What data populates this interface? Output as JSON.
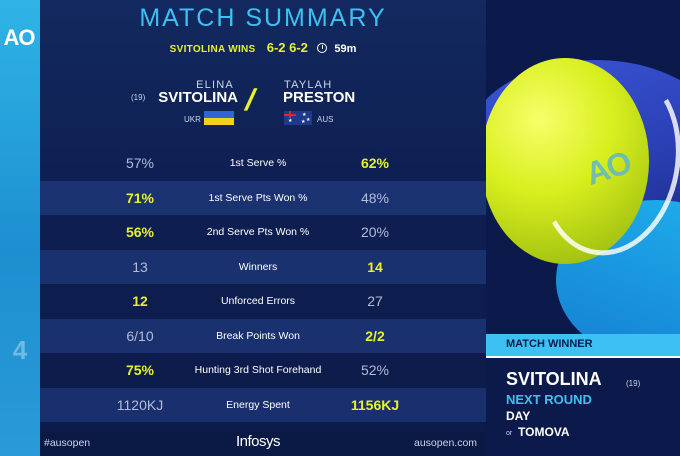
{
  "brand": {
    "logo_text": "AO",
    "side_mark": "4"
  },
  "header": {
    "title": "MATCH SUMMARY",
    "result_text": "SVITOLINA WINS",
    "scores": "6-2  6-2",
    "duration": "59m"
  },
  "players": {
    "p1": {
      "first": "ELINA",
      "last": "SVITOLINA",
      "seed": "(19)",
      "country": "UKR"
    },
    "p2": {
      "first": "TAYLAH",
      "last": "PRESTON",
      "country": "AUS"
    }
  },
  "stats": [
    {
      "left": "57%",
      "label": "1st Serve %",
      "right": "62%",
      "winner": "right"
    },
    {
      "left": "71%",
      "label": "1st Serve Pts Won %",
      "right": "48%",
      "winner": "left"
    },
    {
      "left": "56%",
      "label": "2nd Serve Pts Won %",
      "right": "20%",
      "winner": "left"
    },
    {
      "left": "13",
      "label": "Winners",
      "right": "14",
      "winner": "right"
    },
    {
      "left": "12",
      "label": "Unforced Errors",
      "right": "27",
      "winner": "left"
    },
    {
      "left": "6/10",
      "label": "Break Points Won",
      "right": "2/2",
      "winner": "right"
    },
    {
      "left": "75%",
      "label": "Hunting 3rd Shot Forehand",
      "right": "52%",
      "winner": "left"
    },
    {
      "left": "1120KJ",
      "label": "Energy Spent",
      "right": "1156KJ",
      "winner": "right"
    }
  ],
  "footer": {
    "hashtag": "#ausopen",
    "sponsor": "Infosys",
    "website": "ausopen.com"
  },
  "winner_panel": {
    "heading": "MATCH WINNER",
    "name": "SVITOLINA",
    "seed": "(19)",
    "next_round": "NEXT ROUND",
    "opponent_1": "DAY",
    "or_text": "or",
    "opponent_2": "TOMOVA"
  },
  "ball_logo": "AO",
  "colors": {
    "accent_yellow": "#e8f226",
    "accent_cyan": "#3cc1f2",
    "panel_navy": "#0c1b48",
    "row_band": "#26428c"
  }
}
